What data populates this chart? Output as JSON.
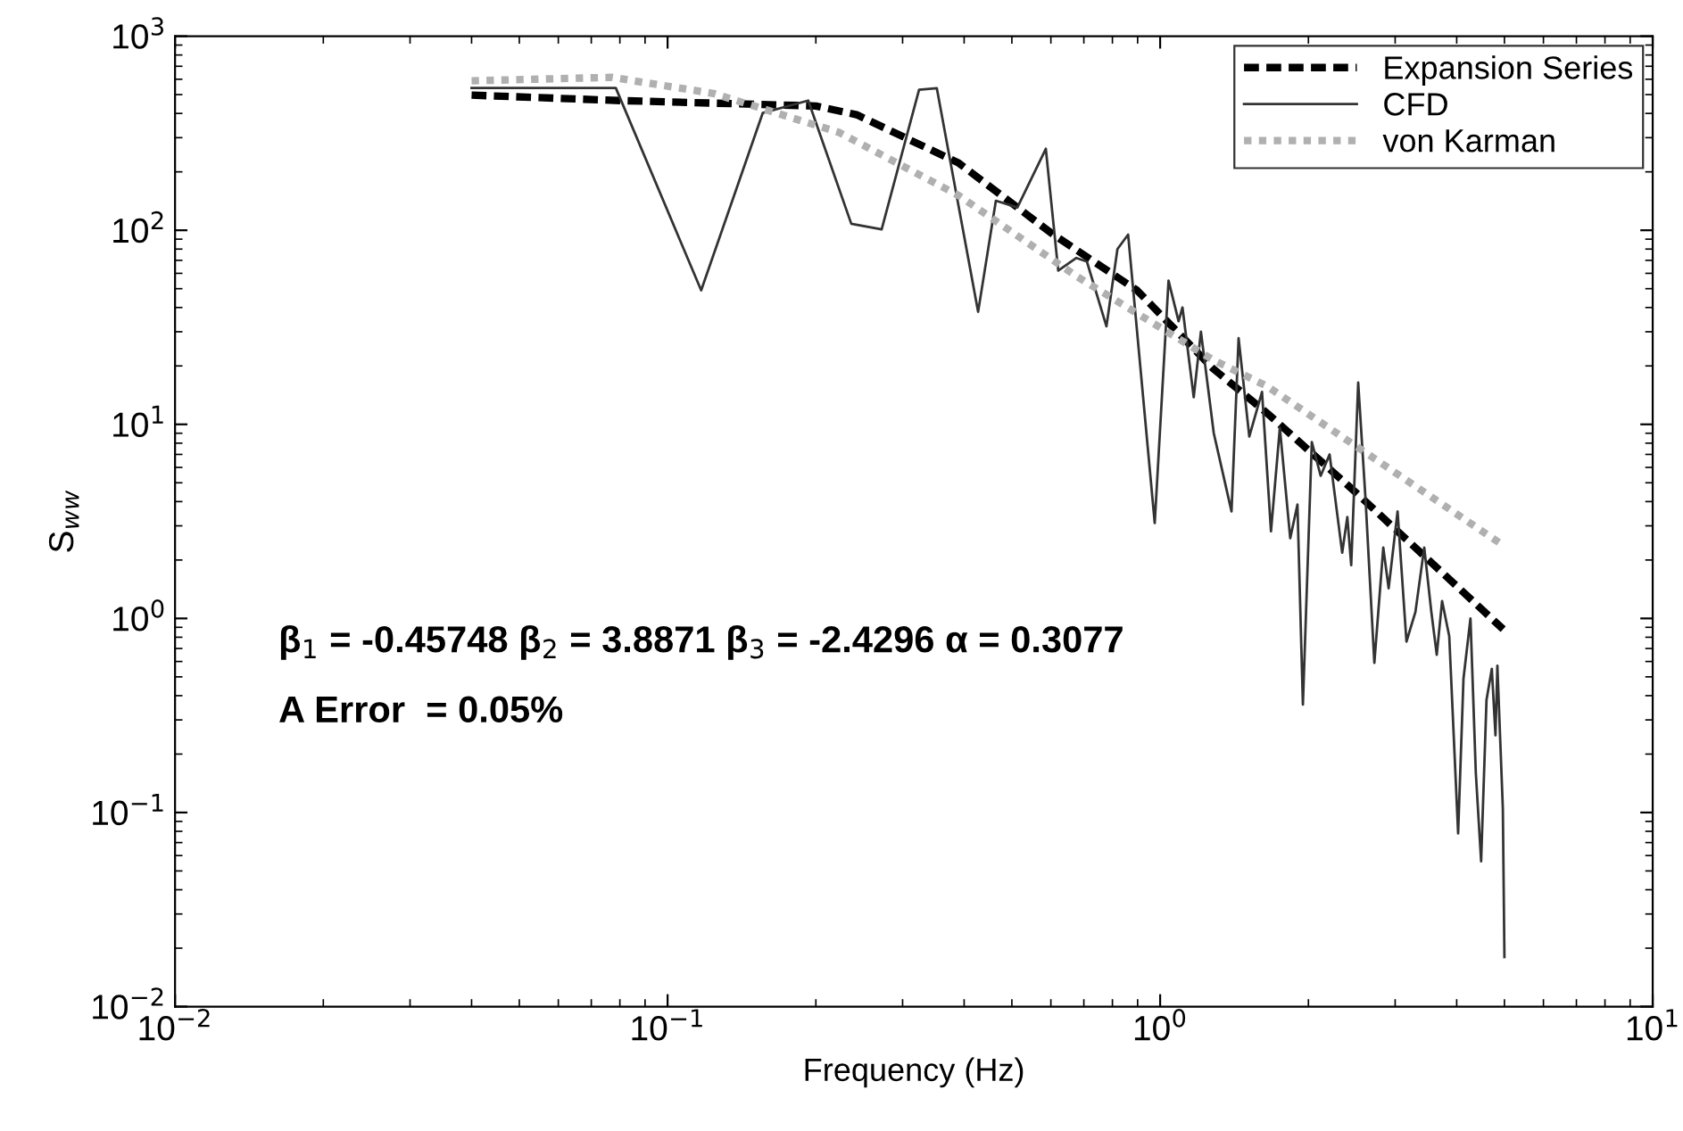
{
  "chart_data": {
    "type": "line",
    "xlabel": "Frequency (Hz)",
    "ylabel": "S$_{ww}$",
    "log": "xy",
    "grid": false,
    "legend": "top right",
    "xlim": [
      0.01,
      10
    ],
    "ylim": [
      0.01,
      1000
    ],
    "xticks": [
      {
        "value": 0.01,
        "label": "10$^{−2}$"
      },
      {
        "value": 0.1,
        "label": "10$^{−1}$"
      },
      {
        "value": 1,
        "label": "10$^{0}$"
      },
      {
        "value": 10,
        "label": "10$^{1}$"
      }
    ],
    "yticks": [
      {
        "value": 0.01,
        "label": "10$^{−2}$"
      },
      {
        "value": 0.1,
        "label": "10$^{−1}$"
      },
      {
        "value": 1,
        "label": "10$^{0}$"
      },
      {
        "value": 10,
        "label": "10$^{1}$"
      },
      {
        "value": 100,
        "label": "10$^{2}$"
      },
      {
        "value": 1000,
        "label": "10$^{3}$"
      }
    ],
    "series": [
      {
        "name": "Expansion Series",
        "color": "#000000",
        "line_style": "dashed",
        "x": [
          0.04,
          0.08,
          0.2,
          0.242,
          0.39,
          0.607,
          0.898,
          1.28,
          1.65,
          2.51,
          4.97
        ],
        "values": [
          497,
          466,
          437,
          394,
          222,
          95,
          49,
          19.4,
          11.4,
          4.4,
          0.88
        ]
      },
      {
        "name": "CFD",
        "color": "#333333",
        "line_style": "solid",
        "x": [
          0.04,
          0.0785,
          0.117,
          0.156,
          0.193,
          0.236,
          0.272,
          0.324,
          0.352,
          0.427,
          0.464,
          0.513,
          0.586,
          0.621,
          0.676,
          0.71,
          0.778,
          0.819,
          0.861,
          0.975,
          1.04,
          1.09,
          1.11,
          1.17,
          1.21,
          1.285,
          1.396,
          1.443,
          1.517,
          1.61,
          1.679,
          1.75,
          1.837,
          1.9,
          1.949,
          2.032,
          2.118,
          2.208,
          2.342,
          2.399,
          2.443,
          2.524,
          2.612,
          2.722,
          2.838,
          2.91,
          3.034,
          3.163,
          3.298,
          3.437,
          3.553,
          3.644,
          3.736,
          3.863,
          4.027,
          4.129,
          4.266,
          4.374,
          4.484,
          4.598,
          4.714,
          4.795,
          4.838,
          4.963,
          5.0
        ],
        "values": [
          541,
          541,
          49,
          402,
          466,
          108,
          101,
          530,
          540,
          38,
          142,
          131,
          263,
          62,
          72,
          69,
          32,
          80,
          95,
          3.1,
          55,
          34,
          40,
          13.8,
          30,
          9.0,
          3.56,
          27.8,
          8.65,
          14.7,
          2.81,
          9.6,
          2.59,
          3.86,
          0.36,
          8.1,
          5.43,
          7.0,
          2.18,
          3.33,
          1.88,
          16.4,
          4.12,
          0.59,
          2.32,
          1.43,
          3.56,
          0.76,
          1.08,
          2.32,
          1.08,
          0.65,
          1.23,
          0.81,
          0.078,
          0.49,
          1.0,
          0.16,
          0.056,
          0.38,
          0.55,
          0.25,
          0.57,
          0.105,
          0.018
        ]
      },
      {
        "name": "von Karman",
        "color": "#b0b0b0",
        "line_style": "dotted",
        "x": [
          0.04,
          0.077,
          0.124,
          0.223,
          0.39,
          0.676,
          1.28,
          1.65,
          4.97
        ],
        "values": [
          589,
          614,
          507,
          319,
          151,
          58,
          21.5,
          15.7,
          2.38
        ]
      }
    ],
    "annotations": [
      "β$_{1}$ = -0.45748 β$_{2}$ = 3.8871 β$_{3}$ = -2.4296 α = 0.3077",
      "A Error  = 0.05%"
    ]
  }
}
